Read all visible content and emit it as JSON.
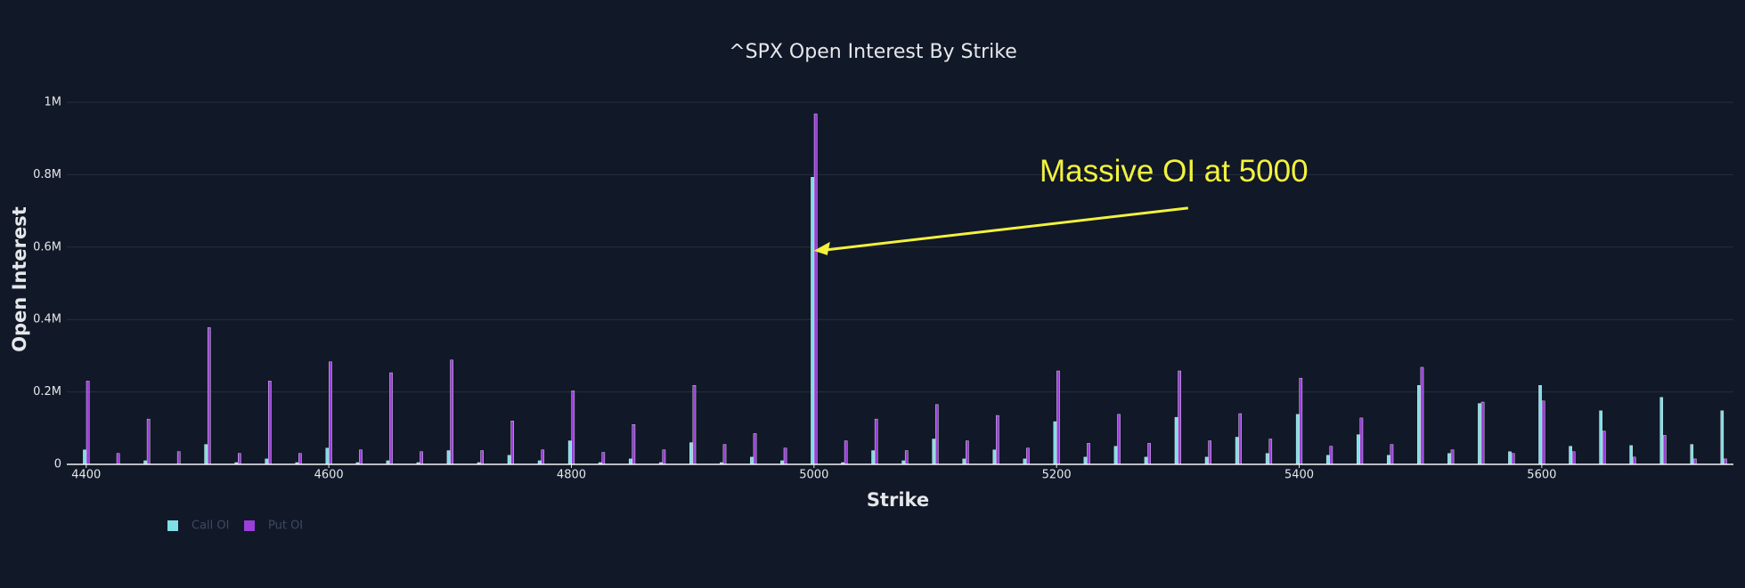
{
  "chart_data": {
    "type": "bar",
    "title": "^SPX Open Interest By Strike",
    "x_label": "Strike",
    "y_label": "Open Interest",
    "x": [
      4400,
      4425,
      4450,
      4475,
      4500,
      4525,
      4550,
      4575,
      4600,
      4625,
      4650,
      4675,
      4700,
      4725,
      4750,
      4775,
      4800,
      4825,
      4850,
      4875,
      4900,
      4925,
      4950,
      4975,
      5000,
      5025,
      5050,
      5075,
      5100,
      5125,
      5150,
      5175,
      5200,
      5225,
      5250,
      5275,
      5300,
      5325,
      5350,
      5375,
      5400,
      5425,
      5450,
      5475,
      5500,
      5525,
      5550,
      5575,
      5600,
      5625,
      5650,
      5675,
      5700,
      5725,
      5750
    ],
    "series": [
      {
        "name": "Call OI",
        "color": "#7fdfe6",
        "values": [
          40000,
          0,
          10000,
          0,
          55000,
          5000,
          15000,
          5000,
          45000,
          5000,
          10000,
          5000,
          38000,
          5000,
          25000,
          10000,
          65000,
          5000,
          15000,
          5000,
          60000,
          5000,
          20000,
          10000,
          793000,
          5000,
          38000,
          10000,
          70000,
          15000,
          40000,
          15000,
          118000,
          20000,
          50000,
          20000,
          130000,
          20000,
          75000,
          30000,
          138000,
          25000,
          82000,
          25000,
          218000,
          30000,
          168000,
          35000,
          218000,
          50000,
          148000,
          52000,
          185000,
          55000,
          148000
        ]
      },
      {
        "name": "Put OI",
        "color": "#9a3fd8",
        "values": [
          230000,
          30000,
          125000,
          35000,
          378000,
          30000,
          230000,
          30000,
          283000,
          40000,
          253000,
          35000,
          288000,
          38000,
          120000,
          40000,
          203000,
          33000,
          110000,
          40000,
          218000,
          55000,
          85000,
          45000,
          968000,
          65000,
          125000,
          38000,
          165000,
          65000,
          135000,
          45000,
          258000,
          58000,
          138000,
          58000,
          258000,
          65000,
          140000,
          70000,
          238000,
          50000,
          128000,
          55000,
          268000,
          40000,
          172000,
          30000,
          175000,
          35000,
          92000,
          20000,
          80000,
          15000,
          15000
        ]
      }
    ],
    "xlim": [
      4384,
      5758
    ],
    "xticks": [
      4400,
      4600,
      4800,
      5000,
      5200,
      5400,
      5600
    ],
    "ylim": [
      0,
      1000000
    ],
    "yticks": [
      0,
      {
        "value": 200000,
        "label": "0.2M"
      },
      {
        "value": 400000,
        "label": "0.4M"
      },
      {
        "value": 600000,
        "label": "0.6M"
      },
      {
        "value": 800000,
        "label": "0.8M"
      },
      {
        "value": 1000000,
        "label": "1M"
      }
    ],
    "grid": true,
    "legend": "bottom-left",
    "annotation": {
      "text": "Massive OI at 5000",
      "x": 5000,
      "y": 590000,
      "color": "#f2f23e"
    }
  }
}
